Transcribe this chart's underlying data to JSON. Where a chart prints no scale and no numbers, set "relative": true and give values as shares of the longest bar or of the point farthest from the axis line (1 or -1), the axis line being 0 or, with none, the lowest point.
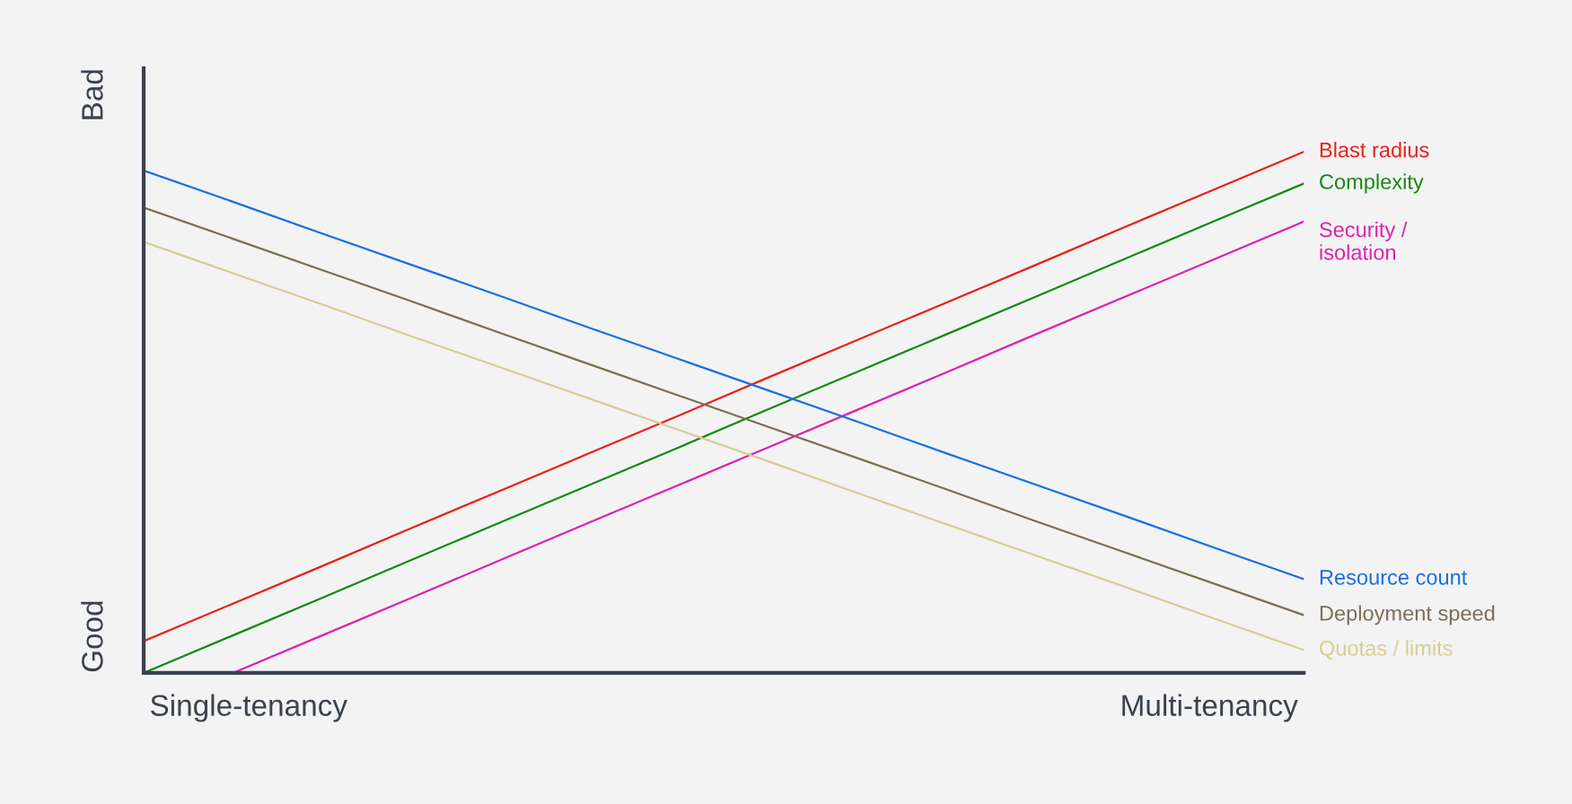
{
  "chart_data": {
    "type": "line",
    "relative": true,
    "legend": false,
    "marker": "none",
    "line_style": "solid",
    "categories": [
      null,
      null,
      null,
      null,
      null,
      null,
      null,
      null,
      null,
      null,
      null,
      null,
      null,
      null
    ],
    "annotations": [
      "Single-tenancy",
      "Multi-tenancy",
      "Good",
      "Bad"
    ],
    "series": [
      {
        "name": "Blast radius",
        "color": "#e8221c",
        "values": [
          0.061,
          0.133,
          0.205,
          0.278,
          0.35,
          0.422,
          0.494,
          0.567,
          0.639,
          0.711,
          0.783,
          0.856,
          0.928,
          1
        ]
      },
      {
        "name": "Complexity",
        "color": "#128a12",
        "values": [
          0,
          0.072,
          0.144,
          0.217,
          0.289,
          0.361,
          0.433,
          0.506,
          0.578,
          0.65,
          0.722,
          0.795,
          0.867,
          0.939
        ]
      },
      {
        "name": "Security /\nisolation",
        "color": "#dd22b0",
        "values": [
          null,
          0,
          0.072,
          0.144,
          0.217,
          0.289,
          0.361,
          0.433,
          0.505,
          0.577,
          0.65,
          0.722,
          0.794,
          0.866
        ]
      },
      {
        "name": "Resource count",
        "color": "#1a6fe0",
        "values": [
          0.964,
          0.904,
          0.843,
          0.783,
          0.723,
          0.662,
          0.602,
          0.542,
          0.482,
          0.421,
          0.361,
          0.301,
          0.24,
          0.18
        ]
      },
      {
        "name": "Deployment speed",
        "color": "#7d6d55",
        "values": [
          0.893,
          0.833,
          0.773,
          0.713,
          0.652,
          0.592,
          0.532,
          0.472,
          0.412,
          0.352,
          0.291,
          0.231,
          0.171,
          0.111
        ]
      },
      {
        "name": "Quotas / limits",
        "color": "#d9cc94",
        "values": [
          0.827,
          0.767,
          0.707,
          0.646,
          0.586,
          0.526,
          0.466,
          0.406,
          0.345,
          0.285,
          0.225,
          0.165,
          0.104,
          0.044
        ]
      }
    ]
  }
}
